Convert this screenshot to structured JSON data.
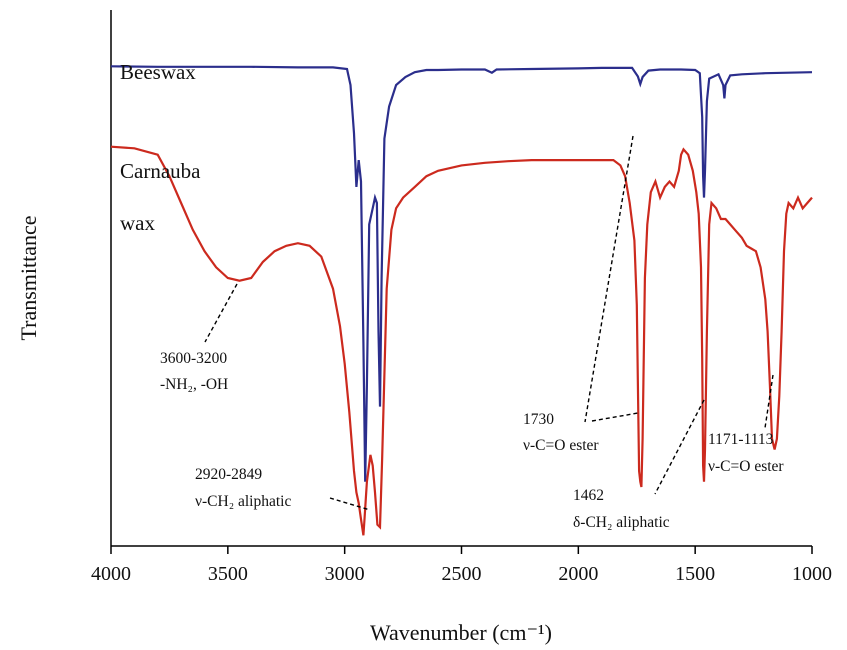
{
  "chart_data": {
    "type": "line",
    "xlabel": "Wavenumber (cm⁻¹)",
    "ylabel": "Transmittance",
    "xlim": [
      4000,
      1000
    ],
    "x_reversed": true,
    "grid": false,
    "xticks": [
      "4000",
      "3500",
      "3000",
      "2500",
      "2000",
      "1500",
      "1000"
    ],
    "series": [
      {
        "name": "Beeswax",
        "color": "#2b2e8c",
        "points": [
          [
            4000,
            0.895
          ],
          [
            3800,
            0.894
          ],
          [
            3600,
            0.894
          ],
          [
            3400,
            0.894
          ],
          [
            3200,
            0.893
          ],
          [
            3050,
            0.893
          ],
          [
            2990,
            0.89
          ],
          [
            2975,
            0.86
          ],
          [
            2960,
            0.77
          ],
          [
            2950,
            0.67
          ],
          [
            2940,
            0.72
          ],
          [
            2930,
            0.68
          ],
          [
            2920,
            0.38
          ],
          [
            2912,
            0.12
          ],
          [
            2905,
            0.3
          ],
          [
            2895,
            0.6
          ],
          [
            2880,
            0.63
          ],
          [
            2870,
            0.65
          ],
          [
            2862,
            0.64
          ],
          [
            2855,
            0.4
          ],
          [
            2849,
            0.26
          ],
          [
            2842,
            0.5
          ],
          [
            2830,
            0.76
          ],
          [
            2810,
            0.82
          ],
          [
            2780,
            0.86
          ],
          [
            2740,
            0.875
          ],
          [
            2700,
            0.884
          ],
          [
            2650,
            0.888
          ],
          [
            2600,
            0.888
          ],
          [
            2500,
            0.889
          ],
          [
            2400,
            0.889
          ],
          [
            2370,
            0.883
          ],
          [
            2350,
            0.889
          ],
          [
            2200,
            0.89
          ],
          [
            2000,
            0.891
          ],
          [
            1900,
            0.892
          ],
          [
            1770,
            0.892
          ],
          [
            1745,
            0.876
          ],
          [
            1735,
            0.862
          ],
          [
            1725,
            0.875
          ],
          [
            1700,
            0.887
          ],
          [
            1650,
            0.889
          ],
          [
            1560,
            0.889
          ],
          [
            1500,
            0.888
          ],
          [
            1480,
            0.882
          ],
          [
            1470,
            0.8
          ],
          [
            1466,
            0.69
          ],
          [
            1462,
            0.65
          ],
          [
            1458,
            0.7
          ],
          [
            1450,
            0.83
          ],
          [
            1440,
            0.872
          ],
          [
            1400,
            0.88
          ],
          [
            1380,
            0.86
          ],
          [
            1375,
            0.835
          ],
          [
            1370,
            0.86
          ],
          [
            1350,
            0.878
          ],
          [
            1300,
            0.88
          ],
          [
            1200,
            0.882
          ],
          [
            1100,
            0.883
          ],
          [
            1000,
            0.884
          ]
        ]
      },
      {
        "name": "Carnauba wax",
        "color": "#cc2a1e",
        "points": [
          [
            4000,
            0.745
          ],
          [
            3900,
            0.742
          ],
          [
            3800,
            0.73
          ],
          [
            3750,
            0.69
          ],
          [
            3700,
            0.64
          ],
          [
            3650,
            0.59
          ],
          [
            3600,
            0.55
          ],
          [
            3550,
            0.52
          ],
          [
            3500,
            0.5
          ],
          [
            3450,
            0.495
          ],
          [
            3400,
            0.5
          ],
          [
            3350,
            0.53
          ],
          [
            3300,
            0.55
          ],
          [
            3250,
            0.56
          ],
          [
            3200,
            0.565
          ],
          [
            3150,
            0.56
          ],
          [
            3100,
            0.54
          ],
          [
            3050,
            0.48
          ],
          [
            3020,
            0.41
          ],
          [
            3000,
            0.34
          ],
          [
            2980,
            0.25
          ],
          [
            2960,
            0.14
          ],
          [
            2950,
            0.1
          ],
          [
            2940,
            0.08
          ],
          [
            2930,
            0.05
          ],
          [
            2920,
            0.02
          ],
          [
            2915,
            0.05
          ],
          [
            2905,
            0.12
          ],
          [
            2890,
            0.17
          ],
          [
            2880,
            0.15
          ],
          [
            2870,
            0.1
          ],
          [
            2860,
            0.04
          ],
          [
            2849,
            0.035
          ],
          [
            2840,
            0.16
          ],
          [
            2820,
            0.48
          ],
          [
            2800,
            0.59
          ],
          [
            2780,
            0.63
          ],
          [
            2750,
            0.65
          ],
          [
            2700,
            0.67
          ],
          [
            2650,
            0.69
          ],
          [
            2600,
            0.7
          ],
          [
            2500,
            0.71
          ],
          [
            2400,
            0.715
          ],
          [
            2300,
            0.718
          ],
          [
            2200,
            0.72
          ],
          [
            2100,
            0.72
          ],
          [
            2000,
            0.72
          ],
          [
            1900,
            0.72
          ],
          [
            1850,
            0.72
          ],
          [
            1820,
            0.71
          ],
          [
            1800,
            0.69
          ],
          [
            1780,
            0.64
          ],
          [
            1760,
            0.57
          ],
          [
            1750,
            0.45
          ],
          [
            1745,
            0.3
          ],
          [
            1740,
            0.14
          ],
          [
            1735,
            0.12
          ],
          [
            1730,
            0.11
          ],
          [
            1725,
            0.2
          ],
          [
            1715,
            0.5
          ],
          [
            1705,
            0.6
          ],
          [
            1690,
            0.66
          ],
          [
            1670,
            0.68
          ],
          [
            1650,
            0.65
          ],
          [
            1630,
            0.67
          ],
          [
            1610,
            0.68
          ],
          [
            1590,
            0.67
          ],
          [
            1570,
            0.7
          ],
          [
            1560,
            0.73
          ],
          [
            1550,
            0.74
          ],
          [
            1530,
            0.73
          ],
          [
            1510,
            0.7
          ],
          [
            1495,
            0.66
          ],
          [
            1485,
            0.62
          ],
          [
            1475,
            0.52
          ],
          [
            1470,
            0.35
          ],
          [
            1466,
            0.15
          ],
          [
            1462,
            0.12
          ],
          [
            1458,
            0.18
          ],
          [
            1450,
            0.4
          ],
          [
            1440,
            0.6
          ],
          [
            1430,
            0.64
          ],
          [
            1410,
            0.63
          ],
          [
            1390,
            0.61
          ],
          [
            1370,
            0.61
          ],
          [
            1350,
            0.6
          ],
          [
            1330,
            0.59
          ],
          [
            1300,
            0.575
          ],
          [
            1280,
            0.56
          ],
          [
            1260,
            0.555
          ],
          [
            1240,
            0.55
          ],
          [
            1220,
            0.52
          ],
          [
            1200,
            0.46
          ],
          [
            1190,
            0.4
          ],
          [
            1180,
            0.3
          ],
          [
            1171,
            0.2
          ],
          [
            1160,
            0.18
          ],
          [
            1150,
            0.2
          ],
          [
            1140,
            0.28
          ],
          [
            1130,
            0.4
          ],
          [
            1120,
            0.55
          ],
          [
            1110,
            0.62
          ],
          [
            1100,
            0.64
          ],
          [
            1080,
            0.63
          ],
          [
            1060,
            0.65
          ],
          [
            1040,
            0.63
          ],
          [
            1020,
            0.64
          ],
          [
            1000,
            0.65
          ]
        ]
      }
    ],
    "series_labels": [
      "Beeswax",
      "Carnauba",
      "wax"
    ],
    "annotations": [
      {
        "line1": "3600-3200",
        "line2": "-NH₂, -OH",
        "target_x": 3450
      },
      {
        "line1": "2920-2849",
        "line2": "ν-CH₂ aliphatic",
        "target_x": 2885
      },
      {
        "line1": "1730",
        "line2": "ν-C=O ester",
        "target_x": 1735
      },
      {
        "line1": "1462",
        "line2": "δ-CH₂ aliphatic",
        "target_x": 1462
      },
      {
        "line1": "1171-1113",
        "line2": "ν-C=O ester",
        "target_x": 1171
      }
    ]
  }
}
